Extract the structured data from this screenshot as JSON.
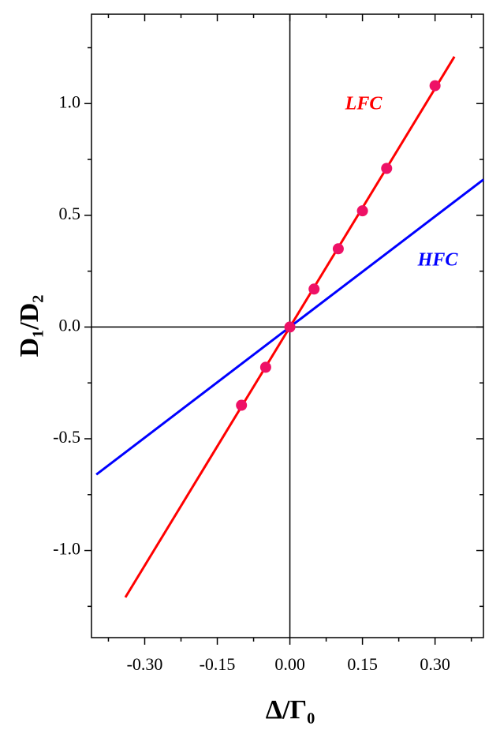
{
  "chart_data": {
    "type": "line",
    "x_label": "Δ/Γ₀",
    "y_label": "D₁/D₂",
    "xlim": [
      -0.41,
      0.4
    ],
    "ylim": [
      -1.39,
      1.4
    ],
    "xticks": [
      {
        "value": -0.3,
        "label": "-0.30"
      },
      {
        "value": -0.15,
        "label": "-0.15"
      },
      {
        "value": 0,
        "label": "0.00"
      },
      {
        "value": 0.15,
        "label": "0.15"
      },
      {
        "value": 0.3,
        "label": "0.30"
      }
    ],
    "xminorticks": [
      -0.375,
      -0.225,
      -0.075,
      0.075,
      0.225,
      0.375
    ],
    "yticks": [
      {
        "value": -1,
        "label": "-1.0"
      },
      {
        "value": -0.5,
        "label": "-0.5"
      },
      {
        "value": 0,
        "label": "0.0"
      },
      0.5,
      {
        "value": 1,
        "label": "1.0"
      }
    ],
    "yminorticks": [
      -1.25,
      -0.75,
      -0.25,
      0.25,
      0.75,
      1.25
    ],
    "series": [
      {
        "name": "LFC",
        "color": "#ff0000",
        "x": [
          -0.34,
          0.34
        ],
        "values": [
          -1.21,
          1.21
        ]
      },
      {
        "name": "HFC",
        "color": "#0000ff",
        "x": [
          -0.4,
          0.4
        ],
        "values": [
          -0.66,
          0.66
        ]
      }
    ],
    "points": {
      "color": "#ee1166",
      "x": [
        -0.1,
        -0.05,
        0,
        0.05,
        0.1,
        0.15,
        0.2,
        0.3
      ],
      "values": [
        -0.35,
        -0.18,
        0,
        0.17,
        0.35,
        0.52,
        0.71,
        1.08
      ]
    }
  }
}
